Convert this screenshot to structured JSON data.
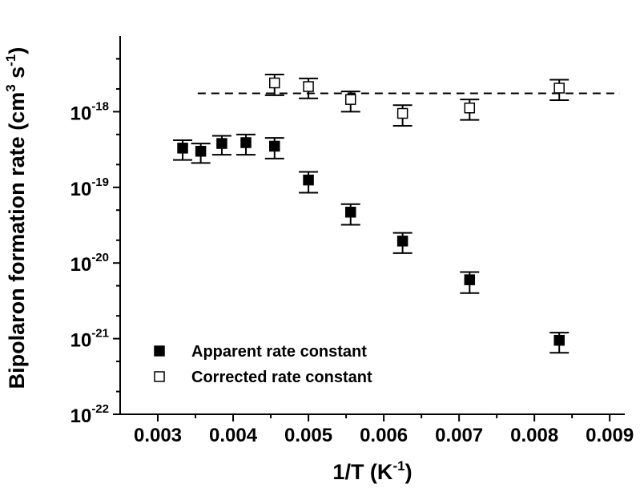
{
  "chart_data": {
    "type": "scatter",
    "x_axis": {
      "title_main": "1/T (K",
      "title_sup": "-1",
      "title_end": ")",
      "range": [
        0.0025,
        0.0092
      ],
      "ticks": [
        0.003,
        0.004,
        0.005,
        0.006,
        0.007,
        0.008,
        0.009
      ],
      "tick_labels": [
        "0.003",
        "0.004",
        "0.005",
        "0.006",
        "0.007",
        "0.008",
        "0.009"
      ]
    },
    "y_axis": {
      "title_main": "Bipolaron formation rate (cm",
      "title_sup1": "3",
      "title_mid": " s",
      "title_sup2": "-1",
      "title_end": ")",
      "scale": "log",
      "range": [
        1e-22,
        1e-17
      ],
      "ticks": [
        {
          "value": 1e-22,
          "base": "10",
          "exp": "-22"
        },
        {
          "value": 1e-21,
          "base": "10",
          "exp": "-21"
        },
        {
          "value": 1e-20,
          "base": "10",
          "exp": "-20"
        },
        {
          "value": 1e-19,
          "base": "10",
          "exp": "-19"
        },
        {
          "value": 1e-18,
          "base": "10",
          "exp": "-18"
        }
      ]
    },
    "series": [
      {
        "name": "Apparent rate constant",
        "marker": "filled-square",
        "points": [
          {
            "x": 0.00333,
            "y": 3.3e-19,
            "y_low": 2.3e-19,
            "y_high": 4.2e-19
          },
          {
            "x": 0.00357,
            "y": 3e-19,
            "y_low": 2.1e-19,
            "y_high": 3.8e-19
          },
          {
            "x": 0.00385,
            "y": 3.8e-19,
            "y_low": 2.7e-19,
            "y_high": 4.8e-19
          },
          {
            "x": 0.00417,
            "y": 3.9e-19,
            "y_low": 2.7e-19,
            "y_high": 5e-19
          },
          {
            "x": 0.00455,
            "y": 3.5e-19,
            "y_low": 2.4e-19,
            "y_high": 4.5e-19
          },
          {
            "x": 0.005,
            "y": 1.25e-19,
            "y_low": 8.5e-20,
            "y_high": 1.6e-19
          },
          {
            "x": 0.00556,
            "y": 4.7e-20,
            "y_low": 3.2e-20,
            "y_high": 6e-20
          },
          {
            "x": 0.00625,
            "y": 1.95e-20,
            "y_low": 1.35e-20,
            "y_high": 2.5e-20
          },
          {
            "x": 0.00714,
            "y": 6e-21,
            "y_low": 4e-21,
            "y_high": 7.6e-21
          },
          {
            "x": 0.00833,
            "y": 9.5e-22,
            "y_low": 6.5e-22,
            "y_high": 1.2e-21
          }
        ]
      },
      {
        "name": "Corrected rate constant",
        "marker": "open-square",
        "points": [
          {
            "x": 0.00455,
            "y": 2.4e-18,
            "y_low": 1.65e-18,
            "y_high": 3.1e-18
          },
          {
            "x": 0.005,
            "y": 2.15e-18,
            "y_low": 1.5e-18,
            "y_high": 2.75e-18
          },
          {
            "x": 0.00556,
            "y": 1.45e-18,
            "y_low": 1e-18,
            "y_high": 1.85e-18
          },
          {
            "x": 0.00625,
            "y": 9.5e-19,
            "y_low": 6.5e-19,
            "y_high": 1.22e-18
          },
          {
            "x": 0.00714,
            "y": 1.12e-18,
            "y_low": 7.8e-19,
            "y_high": 1.45e-18
          },
          {
            "x": 0.00833,
            "y": 2.05e-18,
            "y_low": 1.42e-18,
            "y_high": 2.65e-18
          }
        ]
      }
    ],
    "reference_line": {
      "style": "dashed",
      "y": 1.75e-18,
      "x_range": [
        0.00353,
        0.0092
      ]
    },
    "legend": {
      "placement": "bottom-left"
    },
    "grid": false
  }
}
